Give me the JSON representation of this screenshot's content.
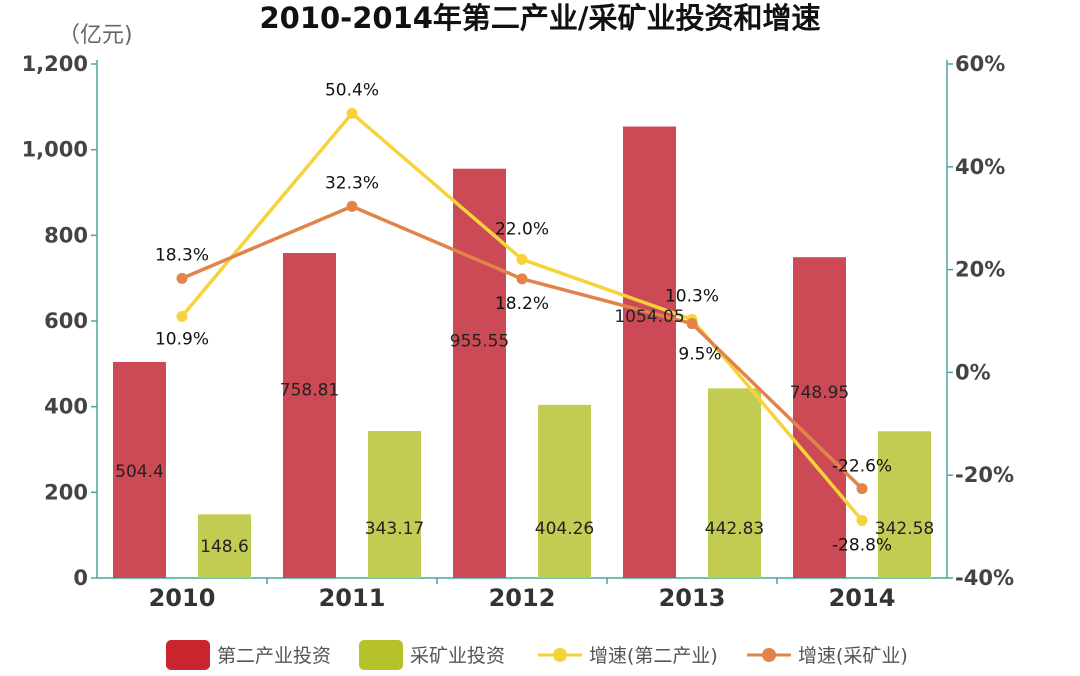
{
  "chart_data": {
    "type": "bar",
    "title": "2010-2014年第二产业/采矿业投资和增速",
    "y_unit_label": "（亿元)",
    "categories": [
      "2010",
      "2011",
      "2012",
      "2013",
      "2014"
    ],
    "y_left_ticks": [
      "0",
      "200",
      "400",
      "600",
      "800",
      "1,000",
      "1,200"
    ],
    "y_left_range": [
      0,
      1200
    ],
    "y_right_ticks": [
      "-40%",
      "-20%",
      "0%",
      "20%",
      "40%",
      "60%"
    ],
    "y_right_range": [
      -40,
      60
    ],
    "grid": false,
    "legend_position": "bottom",
    "bar_series": [
      {
        "name": "第二产业投资",
        "color": "#cc4a55",
        "legend_color": "#c8262f",
        "values": [
          504.4,
          758.81,
          955.55,
          1054.05,
          748.95
        ],
        "labels": [
          "504.4",
          "758.81",
          "955.55",
          "1054.05",
          "748.95"
        ]
      },
      {
        "name": "采矿业投资",
        "color": "#c2cc52",
        "legend_color": "#b6c22a",
        "values": [
          148.6,
          343.17,
          404.26,
          442.83,
          342.58
        ],
        "labels": [
          "148.6",
          "343.17",
          "404.26",
          "442.83",
          "342.58"
        ]
      }
    ],
    "line_series": [
      {
        "name": "增速(第二产业)",
        "color": "#f6d33a",
        "values": [
          10.9,
          50.4,
          22.0,
          10.3,
          -28.8
        ],
        "labels": [
          "10.9%",
          "50.4%",
          "22.0%",
          "10.3%",
          "-28.8%"
        ]
      },
      {
        "name": "增速(采矿业)",
        "color": "#e2844a",
        "values": [
          18.3,
          32.3,
          18.2,
          9.5,
          -22.6
        ],
        "labels": [
          "18.3%",
          "32.3%",
          "18.2%",
          "9.5%",
          "-22.6%"
        ]
      }
    ]
  }
}
